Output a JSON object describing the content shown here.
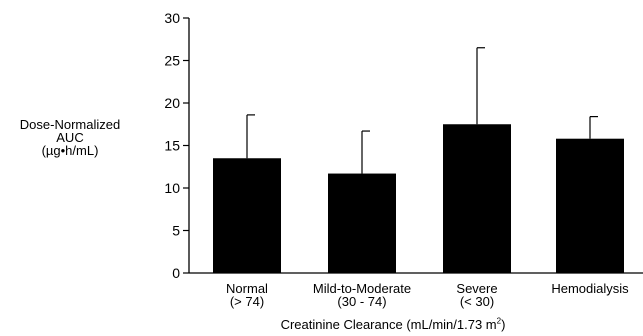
{
  "chart_data": {
    "type": "bar",
    "title": "",
    "ylabel_lines": [
      "Dose-Normalized",
      "AUC",
      "(µg•h/mL)"
    ],
    "xlabel_main": "Creatinine Clearance (mL/min/1.73 m",
    "xlabel_sup": "2",
    "xlabel_end": ")",
    "categories": [
      {
        "line1": "Normal",
        "line2": "(> 74)"
      },
      {
        "line1": "Mild-to-Moderate",
        "line2": "(30 - 74)"
      },
      {
        "line1": "Severe",
        "line2": "(< 30)"
      },
      {
        "line1": "Hemodialysis",
        "line2": ""
      }
    ],
    "values": [
      13.5,
      11.7,
      17.5,
      15.8
    ],
    "error_upper": [
      18.6,
      16.7,
      26.5,
      18.4
    ],
    "ylim": [
      0,
      30
    ],
    "yticks": [
      "0",
      "5",
      "10",
      "15",
      "20",
      "25",
      "30"
    ],
    "bar_color": "#000000",
    "grid": false,
    "legend": "none"
  }
}
